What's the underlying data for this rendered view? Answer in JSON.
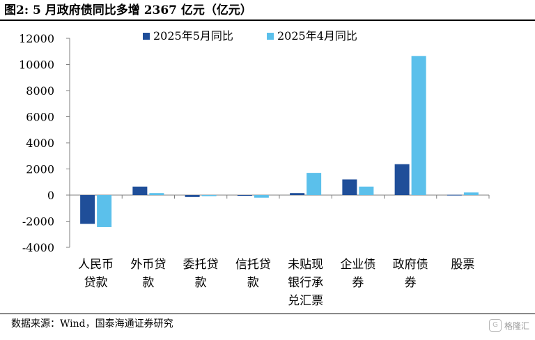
{
  "title": "图2:  5 月政府债同比多增 2367 亿元（亿元）",
  "source": "数据来源：Wind，国泰海通证券研究",
  "watermark": {
    "icon": "gelonghui-logo-icon",
    "text": "格隆汇"
  },
  "colors": {
    "series1": "#1f4e99",
    "series2": "#5bc0eb",
    "axis": "#7f7f7f"
  },
  "chart_data": {
    "type": "bar",
    "categories": [
      [
        "人民币",
        "贷款"
      ],
      [
        "外币贷",
        "款"
      ],
      [
        "委托贷",
        "款"
      ],
      [
        "信托贷",
        "款"
      ],
      [
        "未贴现",
        "银行承",
        "兑汇票"
      ],
      [
        "企业债",
        "券"
      ],
      [
        "政府债",
        "券"
      ],
      [
        "股票"
      ]
    ],
    "series": [
      {
        "name": "2025年5月同比",
        "values": [
          -2200,
          650,
          -150,
          -30,
          150,
          1200,
          2367,
          20
        ]
      },
      {
        "name": "2025年4月同比",
        "values": [
          -2450,
          150,
          -80,
          -200,
          1700,
          650,
          10650,
          200
        ]
      }
    ],
    "ylim": [
      -4000,
      12000
    ],
    "yticks": [
      -4000,
      -2000,
      0,
      2000,
      4000,
      6000,
      8000,
      10000,
      12000
    ],
    "grid": false,
    "legend_position": "top-center"
  }
}
